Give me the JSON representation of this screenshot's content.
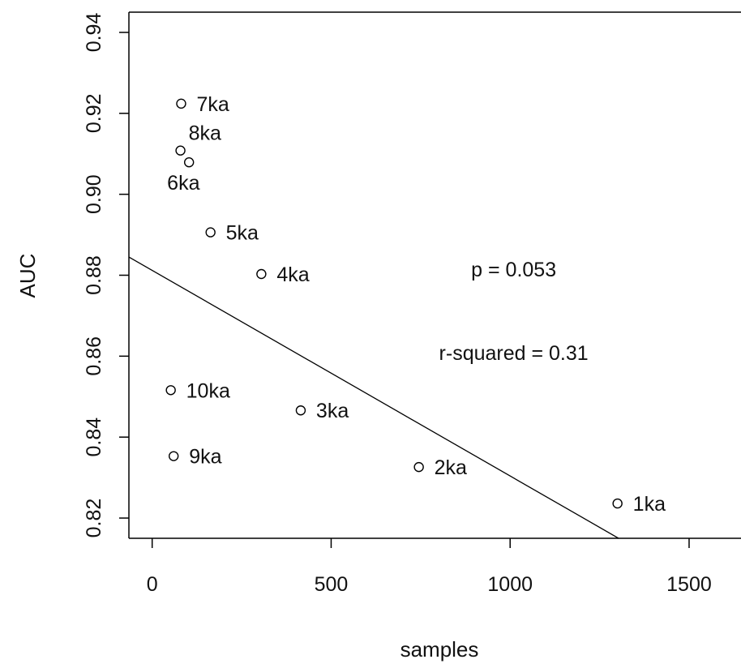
{
  "chart_data": {
    "type": "scatter",
    "xlabel": "samples",
    "ylabel": "AUC",
    "xlim": [
      -65,
      1645
    ],
    "ylim": [
      0.815,
      0.945
    ],
    "x_ticks": [
      0,
      500,
      1000,
      1500
    ],
    "x_tick_labels": [
      "0",
      "500",
      "1000",
      "1500"
    ],
    "y_ticks": [
      0.82,
      0.84,
      0.86,
      0.88,
      0.9,
      0.92,
      0.94
    ],
    "y_tick_labels": [
      "0.82",
      "0.84",
      "0.86",
      "0.88",
      "0.90",
      "0.92",
      "0.94"
    ],
    "grid": false,
    "points": [
      {
        "label": "1ka",
        "x": 1300,
        "y": 0.8236
      },
      {
        "label": "2ka",
        "x": 745,
        "y": 0.8326
      },
      {
        "label": "3ka",
        "x": 415,
        "y": 0.8466
      },
      {
        "label": "4ka",
        "x": 305,
        "y": 0.8803
      },
      {
        "label": "5ka",
        "x": 163,
        "y": 0.8906
      },
      {
        "label": "6ka",
        "x": 103,
        "y": 0.9079
      },
      {
        "label": "7ka",
        "x": 81,
        "y": 0.9224
      },
      {
        "label": "8ka",
        "x": 79,
        "y": 0.9108
      },
      {
        "label": "9ka",
        "x": 60,
        "y": 0.8353
      },
      {
        "label": "10ka",
        "x": 52,
        "y": 0.8516
      }
    ],
    "regression_line": {
      "intercept": 0.8812,
      "slope": -5.08e-05
    },
    "annotations": [
      {
        "text": "p = 0.053",
        "x": 1010,
        "y": 0.8797
      },
      {
        "text": "r-squared = 0.31",
        "x": 1010,
        "y": 0.8591
      }
    ]
  }
}
